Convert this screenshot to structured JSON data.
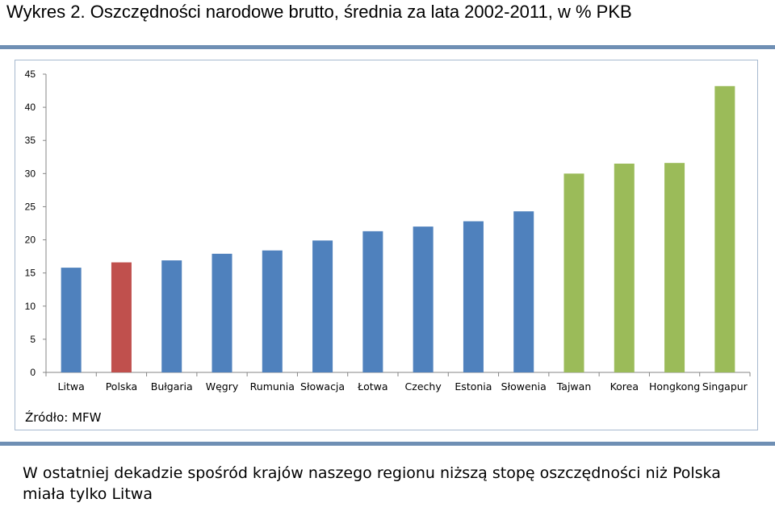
{
  "header": {
    "title": "Wykres 2. Oszczędności narodowe brutto, średnia za lata 2002-2011, w % PKB"
  },
  "footer": {
    "source": "Źródło: MFW",
    "caption": "W ostatniej dekadzie spośród krajów naszego regionu niższą stopę oszczędności niż Polska miała tylko Litwa"
  },
  "chart_data": {
    "type": "bar",
    "title": "",
    "xlabel": "",
    "ylabel": "",
    "ylim": [
      0,
      45
    ],
    "yticks": [
      0,
      5,
      10,
      15,
      20,
      25,
      30,
      35,
      40,
      45
    ],
    "grid": false,
    "legend": "none",
    "categories": [
      "Litwa",
      "Polska",
      "Bułgaria",
      "Węgry",
      "Rumunia",
      "Słowacja",
      "Łotwa",
      "Czechy",
      "Estonia",
      "Słowenia",
      "Tajwan",
      "Korea",
      "Hongkong",
      "Singapur"
    ],
    "values": [
      15.8,
      16.6,
      16.9,
      17.9,
      18.4,
      19.9,
      21.3,
      22.0,
      22.8,
      24.3,
      30.0,
      31.5,
      31.6,
      43.2
    ],
    "bar_colors": [
      "#4f81bd",
      "#c0504d",
      "#4f81bd",
      "#4f81bd",
      "#4f81bd",
      "#4f81bd",
      "#4f81bd",
      "#4f81bd",
      "#4f81bd",
      "#4f81bd",
      "#9bbb59",
      "#9bbb59",
      "#9bbb59",
      "#9bbb59"
    ]
  }
}
